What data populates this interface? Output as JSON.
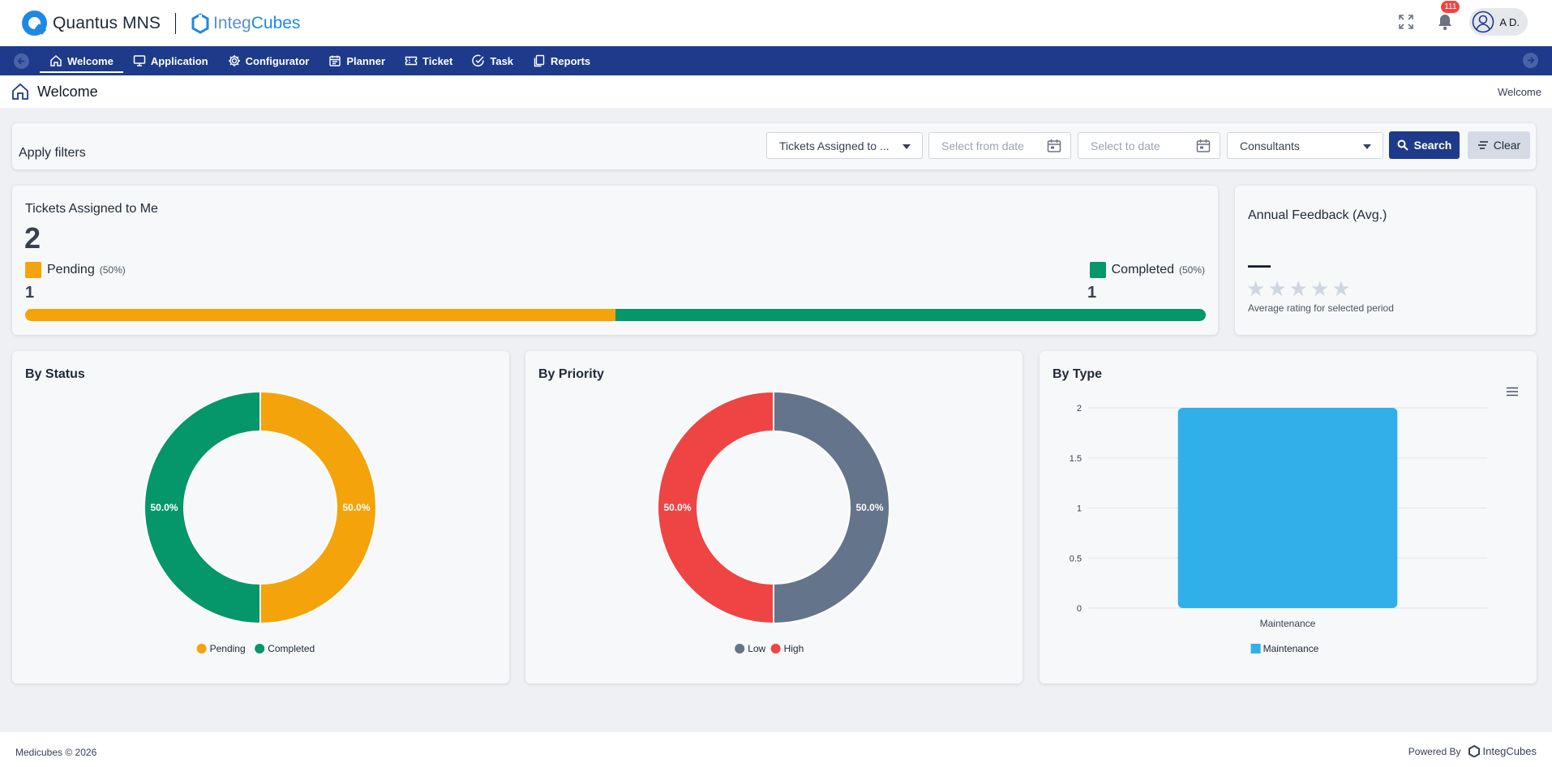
{
  "header": {
    "app_name": "Quantus MNS",
    "partner_name_a": "Integ",
    "partner_name_b": "Cubes",
    "notification_count": "111",
    "user_initials": "A D."
  },
  "nav": {
    "items": [
      {
        "label": "Welcome",
        "icon": "home-icon",
        "active": true
      },
      {
        "label": "Application",
        "icon": "monitor-icon"
      },
      {
        "label": "Configurator",
        "icon": "gear-icon"
      },
      {
        "label": "Planner",
        "icon": "calendar-icon"
      },
      {
        "label": "Ticket",
        "icon": "ticket-icon"
      },
      {
        "label": "Task",
        "icon": "check-circle-icon"
      },
      {
        "label": "Reports",
        "icon": "copy-icon"
      }
    ]
  },
  "page": {
    "title": "Welcome",
    "breadcrumb": "Welcome"
  },
  "filters": {
    "label": "Apply filters",
    "ticket_scope": "Tickets Assigned to ...",
    "from_date_placeholder": "Select from date",
    "to_date_placeholder": "Select to date",
    "group": "Consultants",
    "search_label": "Search",
    "clear_label": "Clear"
  },
  "tickets": {
    "title": "Tickets Assigned to Me",
    "total": "2",
    "pending": {
      "label": "Pending",
      "pct": "(50%)",
      "count": "1",
      "color": "#f4a30b"
    },
    "completed": {
      "label": "Completed",
      "pct": "(50%)",
      "count": "1",
      "color": "#059669"
    },
    "pending_fraction": 0.5
  },
  "feedback": {
    "title": "Annual Feedback (Avg.)",
    "value": "—",
    "stars_max": 5,
    "note": "Average rating for selected period"
  },
  "chart_data": [
    {
      "type": "pie",
      "title": "By Status",
      "donut": true,
      "slices": [
        {
          "name": "Pending",
          "value": 1,
          "label": "50.0%",
          "color": "#f4a30b"
        },
        {
          "name": "Completed",
          "value": 1,
          "label": "50.0%",
          "color": "#059669"
        }
      ],
      "legend": "bottom"
    },
    {
      "type": "pie",
      "title": "By Priority",
      "donut": true,
      "slices": [
        {
          "name": "Low",
          "value": 1,
          "label": "50.0%",
          "color": "#64748b"
        },
        {
          "name": "High",
          "value": 1,
          "label": "50.0%",
          "color": "#ef4444"
        }
      ],
      "legend": "bottom"
    },
    {
      "type": "bar",
      "title": "By Type",
      "categories": [
        "Maintenance"
      ],
      "series": [
        {
          "name": "Maintenance",
          "values": [
            2
          ],
          "color": "#31afe8"
        }
      ],
      "ylim": [
        0,
        2
      ],
      "yticks": [
        "0",
        "0.5",
        "1",
        "1.5",
        "2"
      ],
      "grid": true,
      "legend": "bottom"
    }
  ],
  "footer": {
    "copyright": "Medicubes © 2026",
    "powered_by": "Powered By",
    "powered_name": "IntegCubes"
  }
}
